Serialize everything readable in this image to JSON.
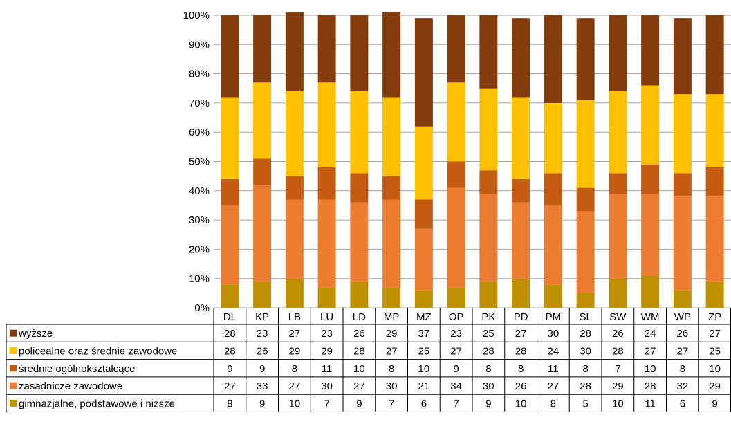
{
  "chart_data": {
    "type": "bar",
    "stacked": true,
    "percent": true,
    "categories": [
      "DL",
      "KP",
      "LB",
      "LU",
      "LD",
      "MP",
      "MZ",
      "OP",
      "PK",
      "PD",
      "PM",
      "SL",
      "SW",
      "WM",
      "WP",
      "ZP"
    ],
    "y_tick_labels": [
      "0%",
      "10%",
      "20%",
      "30%",
      "40%",
      "50%",
      "60%",
      "70%",
      "80%",
      "90%",
      "100%"
    ],
    "ylim": [
      0,
      100
    ],
    "grid": true,
    "legend_placement": "data-table-left",
    "series": [
      {
        "name": "gimnazjalne, podstawowe i niższe",
        "color": "#BF9000",
        "values": [
          8,
          9,
          10,
          7,
          9,
          7,
          6,
          7,
          9,
          10,
          8,
          5,
          10,
          11,
          6,
          9
        ]
      },
      {
        "name": "zasadnicze zawodowe",
        "color": "#ED7D31",
        "values": [
          27,
          33,
          27,
          30,
          27,
          30,
          21,
          34,
          30,
          26,
          27,
          28,
          29,
          28,
          32,
          29
        ]
      },
      {
        "name": "średnie ogólnokształcące",
        "color": "#C55A11",
        "values": [
          9,
          9,
          8,
          11,
          10,
          8,
          10,
          9,
          8,
          8,
          11,
          8,
          7,
          10,
          8,
          10
        ]
      },
      {
        "name": "policealne oraz średnie zawodowe",
        "color": "#FFC000",
        "values": [
          28,
          26,
          29,
          29,
          28,
          27,
          25,
          27,
          28,
          28,
          24,
          30,
          28,
          27,
          27,
          25
        ]
      },
      {
        "name": "wyższe",
        "color": "#843C0C",
        "values": [
          28,
          23,
          27,
          23,
          26,
          29,
          37,
          23,
          25,
          27,
          30,
          28,
          26,
          24,
          26,
          27
        ]
      }
    ]
  }
}
